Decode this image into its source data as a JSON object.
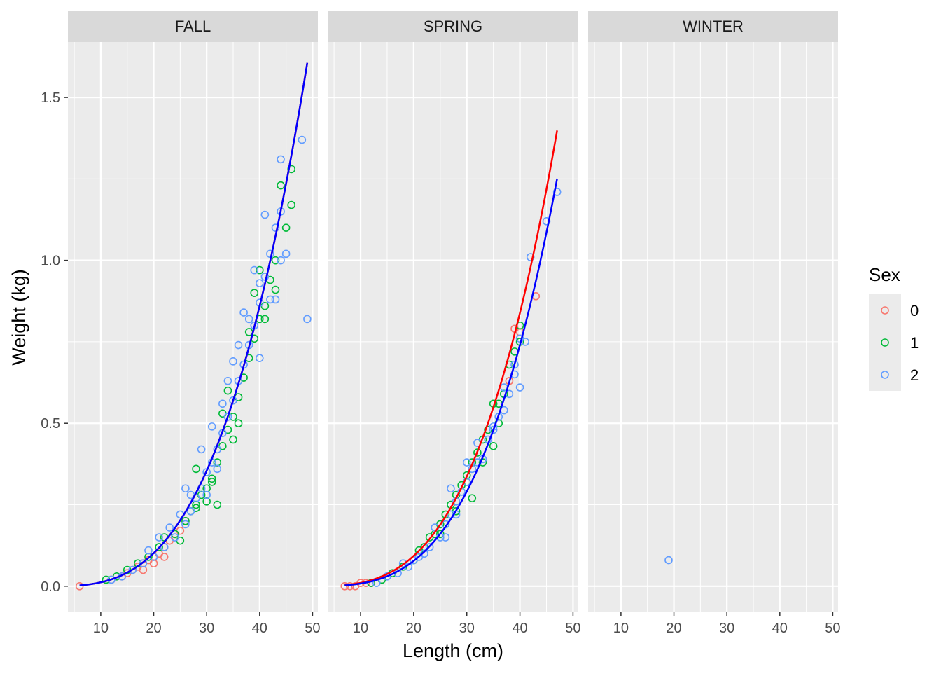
{
  "chart_data": {
    "type": "scatter",
    "xlabel": "Length (cm)",
    "ylabel": "Weight (kg)",
    "xlim": [
      3.8,
      51
    ],
    "ylim": [
      -0.08,
      1.67
    ],
    "x_ticks": [
      10,
      20,
      30,
      40,
      50
    ],
    "y_ticks": [
      0.0,
      0.5,
      1.0,
      1.5
    ],
    "y_tick_labels": [
      "0.0",
      "0.5",
      "1.0",
      "1.5"
    ],
    "grid": true,
    "facets": [
      "FALL",
      "SPRING",
      "WINTER"
    ],
    "legend": {
      "title": "Sex",
      "position": "right",
      "items": [
        {
          "label": "0",
          "color": "#F8766D"
        },
        {
          "label": "1",
          "color": "#00BA38"
        },
        {
          "label": "2",
          "color": "#619CFF"
        }
      ]
    },
    "series_colors": {
      "0": "#F8766D",
      "1": "#00BA38",
      "2": "#619CFF"
    },
    "fit_lines": [
      {
        "facet": "FALL",
        "sex": "0",
        "color": "#FF0000",
        "a": 1e-05,
        "b": 3.08,
        "x_range": [
          6,
          49
        ]
      },
      {
        "facet": "FALL",
        "sex": "2",
        "color": "#0000FF",
        "a": 1e-05,
        "b": 3.08,
        "x_range": [
          6,
          49
        ]
      },
      {
        "facet": "SPRING",
        "sex": "0",
        "color": "#FF0000",
        "a": 7e-06,
        "b": 3.17,
        "x_range": [
          7,
          47
        ]
      },
      {
        "facet": "SPRING",
        "sex": "2",
        "color": "#0000FF",
        "a": 4.6e-06,
        "b": 3.25,
        "x_range": [
          7,
          47
        ]
      }
    ],
    "points": {
      "FALL": {
        "0": [
          [
            6,
            0.0
          ],
          [
            12,
            0.02
          ],
          [
            14,
            0.03
          ],
          [
            15,
            0.04
          ],
          [
            16,
            0.05
          ],
          [
            17,
            0.06
          ],
          [
            18,
            0.07
          ],
          [
            19,
            0.08
          ],
          [
            20,
            0.09
          ],
          [
            21,
            0.1
          ],
          [
            22,
            0.12
          ],
          [
            23,
            0.14
          ],
          [
            24,
            0.16
          ],
          [
            25,
            0.17
          ],
          [
            26,
            0.2
          ],
          [
            18,
            0.05
          ],
          [
            20,
            0.07
          ],
          [
            22,
            0.09
          ]
        ],
        "1": [
          [
            11,
            0.02
          ],
          [
            13,
            0.03
          ],
          [
            15,
            0.05
          ],
          [
            17,
            0.07
          ],
          [
            19,
            0.09
          ],
          [
            21,
            0.12
          ],
          [
            22,
            0.15
          ],
          [
            24,
            0.16
          ],
          [
            26,
            0.2
          ],
          [
            27,
            0.23
          ],
          [
            28,
            0.25
          ],
          [
            29,
            0.28
          ],
          [
            30,
            0.3
          ],
          [
            31,
            0.33
          ],
          [
            32,
            0.38
          ],
          [
            33,
            0.43
          ],
          [
            34,
            0.48
          ],
          [
            35,
            0.52
          ],
          [
            36,
            0.58
          ],
          [
            37,
            0.64
          ],
          [
            38,
            0.7
          ],
          [
            39,
            0.76
          ],
          [
            40,
            0.82
          ],
          [
            40,
            0.97
          ],
          [
            41,
            0.86
          ],
          [
            42,
            0.94
          ],
          [
            43,
            1.0
          ],
          [
            43,
            0.91
          ],
          [
            44,
            1.23
          ],
          [
            45,
            1.1
          ],
          [
            46,
            1.28
          ],
          [
            46,
            1.17
          ],
          [
            32,
            0.25
          ],
          [
            31,
            0.32
          ],
          [
            35,
            0.45
          ],
          [
            38,
            0.78
          ],
          [
            25,
            0.14
          ],
          [
            28,
            0.24
          ],
          [
            30,
            0.26
          ],
          [
            34,
            0.6
          ],
          [
            33,
            0.53
          ],
          [
            36,
            0.5
          ],
          [
            41,
            0.82
          ],
          [
            39,
            0.9
          ],
          [
            28,
            0.36
          ]
        ],
        "2": [
          [
            12,
            0.02
          ],
          [
            14,
            0.03
          ],
          [
            16,
            0.05
          ],
          [
            18,
            0.07
          ],
          [
            20,
            0.09
          ],
          [
            22,
            0.12
          ],
          [
            24,
            0.15
          ],
          [
            26,
            0.19
          ],
          [
            27,
            0.23
          ],
          [
            28,
            0.27
          ],
          [
            29,
            0.3
          ],
          [
            30,
            0.35
          ],
          [
            31,
            0.38
          ],
          [
            32,
            0.42
          ],
          [
            33,
            0.47
          ],
          [
            34,
            0.52
          ],
          [
            35,
            0.57
          ],
          [
            36,
            0.63
          ],
          [
            37,
            0.68
          ],
          [
            38,
            0.74
          ],
          [
            39,
            0.8
          ],
          [
            40,
            0.87
          ],
          [
            41,
            0.95
          ],
          [
            42,
            1.02
          ],
          [
            43,
            1.1
          ],
          [
            44,
            1.15
          ],
          [
            44,
            1.31
          ],
          [
            44,
            1.0
          ],
          [
            45,
            1.02
          ],
          [
            48,
            1.37
          ],
          [
            49,
            0.82
          ],
          [
            41,
            1.14
          ],
          [
            42,
            0.88
          ],
          [
            29,
            0.42
          ],
          [
            31,
            0.49
          ],
          [
            34,
            0.63
          ],
          [
            36,
            0.74
          ],
          [
            37,
            0.84
          ],
          [
            25,
            0.22
          ],
          [
            27,
            0.28
          ],
          [
            33,
            0.56
          ],
          [
            35,
            0.69
          ],
          [
            38,
            0.82
          ],
          [
            39,
            0.97
          ],
          [
            40,
            0.7
          ],
          [
            30,
            0.28
          ],
          [
            32,
            0.36
          ],
          [
            21,
            0.15
          ],
          [
            23,
            0.18
          ],
          [
            19,
            0.11
          ],
          [
            26,
            0.3
          ],
          [
            43,
            0.88
          ],
          [
            40,
            0.93
          ]
        ]
      },
      "SPRING": {
        "0": [
          [
            7,
            0.0
          ],
          [
            8,
            0.0
          ],
          [
            9,
            0.0
          ],
          [
            10,
            0.01
          ],
          [
            11,
            0.01
          ],
          [
            12,
            0.01
          ],
          [
            38,
            0.63
          ],
          [
            39,
            0.79
          ],
          [
            40,
            0.78
          ],
          [
            43,
            0.89
          ]
        ],
        "1": [
          [
            12,
            0.01
          ],
          [
            14,
            0.02
          ],
          [
            16,
            0.04
          ],
          [
            18,
            0.06
          ],
          [
            20,
            0.08
          ],
          [
            22,
            0.12
          ],
          [
            24,
            0.16
          ],
          [
            25,
            0.19
          ],
          [
            26,
            0.22
          ],
          [
            27,
            0.25
          ],
          [
            28,
            0.28
          ],
          [
            29,
            0.31
          ],
          [
            30,
            0.34
          ],
          [
            31,
            0.38
          ],
          [
            32,
            0.41
          ],
          [
            33,
            0.45
          ],
          [
            34,
            0.48
          ],
          [
            35,
            0.56
          ],
          [
            36,
            0.5
          ],
          [
            37,
            0.59
          ],
          [
            38,
            0.68
          ],
          [
            39,
            0.72
          ],
          [
            40,
            0.75
          ],
          [
            40,
            0.8
          ],
          [
            26,
            0.19
          ],
          [
            28,
            0.23
          ],
          [
            31,
            0.27
          ],
          [
            33,
            0.38
          ],
          [
            21,
            0.11
          ],
          [
            23,
            0.15
          ],
          [
            30,
            0.32
          ],
          [
            25,
            0.16
          ],
          [
            36,
            0.56
          ],
          [
            35,
            0.43
          ]
        ],
        "2": [
          [
            13,
            0.01
          ],
          [
            15,
            0.03
          ],
          [
            17,
            0.04
          ],
          [
            19,
            0.06
          ],
          [
            21,
            0.09
          ],
          [
            23,
            0.12
          ],
          [
            25,
            0.15
          ],
          [
            26,
            0.19
          ],
          [
            27,
            0.22
          ],
          [
            28,
            0.26
          ],
          [
            29,
            0.29
          ],
          [
            30,
            0.32
          ],
          [
            31,
            0.36
          ],
          [
            32,
            0.44
          ],
          [
            33,
            0.39
          ],
          [
            34,
            0.45
          ],
          [
            35,
            0.49
          ],
          [
            36,
            0.52
          ],
          [
            37,
            0.54
          ],
          [
            38,
            0.59
          ],
          [
            39,
            0.65
          ],
          [
            40,
            0.61
          ],
          [
            40,
            0.76
          ],
          [
            41,
            0.75
          ],
          [
            42,
            1.01
          ],
          [
            45,
            1.12
          ],
          [
            47,
            1.21
          ],
          [
            24,
            0.18
          ],
          [
            22,
            0.1
          ],
          [
            27,
            0.3
          ],
          [
            30,
            0.38
          ],
          [
            35,
            0.48
          ],
          [
            37,
            0.61
          ],
          [
            39,
            0.68
          ],
          [
            32,
            0.38
          ],
          [
            28,
            0.22
          ],
          [
            26,
            0.15
          ],
          [
            18,
            0.07
          ],
          [
            20,
            0.08
          ]
        ]
      },
      "WINTER": {
        "0": [],
        "1": [],
        "2": [
          [
            19,
            0.08
          ]
        ]
      }
    }
  }
}
